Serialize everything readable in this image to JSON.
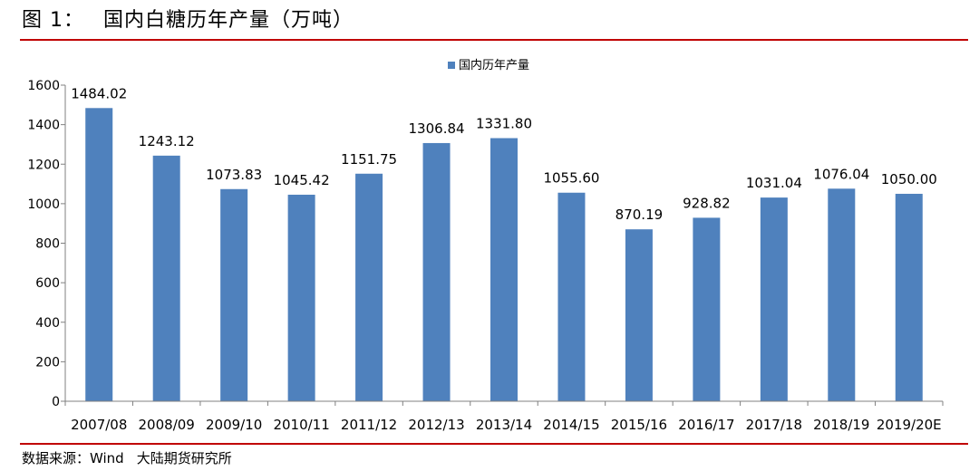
{
  "figure": {
    "label": "图 1：",
    "title": "国内白糖历年产量（万吨）"
  },
  "source": {
    "prefix": "数据来源：Wind",
    "org": "大陆期货研究所"
  },
  "colors": {
    "bar": "#4f81bd",
    "rule": "#c00000",
    "axis": "#808080"
  },
  "chart_data": {
    "type": "bar",
    "title": "",
    "xlabel": "",
    "ylabel": "",
    "legend": {
      "position": "top",
      "entries": [
        "国内历年产量"
      ]
    },
    "grid": false,
    "ylim": [
      0,
      1600
    ],
    "yticks": [
      0,
      200,
      400,
      600,
      800,
      1000,
      1200,
      1400,
      1600
    ],
    "categories": [
      "2007/08",
      "2008/09",
      "2009/10",
      "2010/11",
      "2011/12",
      "2012/13",
      "2013/14",
      "2014/15",
      "2015/16",
      "2016/17",
      "2017/18",
      "2018/19",
      "2019/20E"
    ],
    "series": [
      {
        "name": "国内历年产量",
        "values": [
          1484.02,
          1243.12,
          1073.83,
          1045.42,
          1151.75,
          1306.84,
          1331.8,
          1055.6,
          870.19,
          928.82,
          1031.04,
          1076.04,
          1050.0
        ],
        "labels": [
          "1484.02",
          "1243.12",
          "1073.83",
          "1045.42",
          "1151.75",
          "1306.84",
          "1331.80",
          "1055.60",
          "870.19",
          "928.82",
          "1031.04",
          "1076.04",
          "1050.00"
        ]
      }
    ]
  }
}
